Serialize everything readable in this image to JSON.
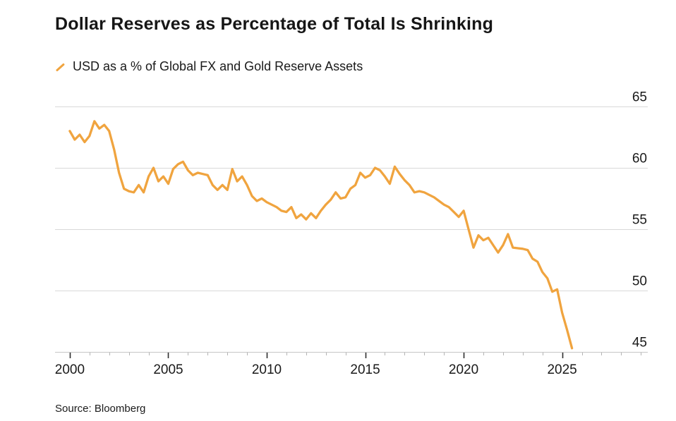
{
  "figure": {
    "title": "Dollar Reserves as Percentage of Total Is Shrinking",
    "source": "Source: Bloomberg"
  },
  "chart_data": {
    "type": "line",
    "title": "Dollar Reserves as Percentage of Total Is Shrinking",
    "source": "Source: Bloomberg",
    "legend_position": "top-left",
    "grid": "horizontal",
    "series": [
      {
        "name": "USD as a % of Global FX and Gold Reserve Assets",
        "color": "#F0A43F",
        "x_start": 2000.0,
        "x_step": 0.25,
        "x_unit": "quarter",
        "values": [
          63.0,
          62.3,
          62.7,
          62.1,
          62.6,
          63.8,
          63.2,
          63.5,
          63.0,
          61.5,
          59.6,
          58.3,
          58.1,
          58.0,
          58.6,
          58.0,
          59.3,
          60.0,
          58.9,
          59.3,
          58.7,
          59.9,
          60.3,
          60.5,
          59.8,
          59.4,
          59.6,
          59.5,
          59.4,
          58.6,
          58.2,
          58.6,
          58.2,
          59.9,
          58.9,
          59.3,
          58.6,
          57.7,
          57.3,
          57.5,
          57.2,
          57.0,
          56.8,
          56.5,
          56.4,
          56.8,
          55.9,
          56.2,
          55.8,
          56.3,
          55.9,
          56.5,
          57.0,
          57.4,
          58.0,
          57.5,
          57.6,
          58.3,
          58.6,
          59.6,
          59.2,
          59.4,
          60.0,
          59.8,
          59.3,
          58.7,
          60.1,
          59.5,
          59.0,
          58.6,
          58.0,
          58.1,
          58.0,
          57.8,
          57.6,
          57.3,
          57.0,
          56.8,
          56.4,
          56.0,
          56.5,
          55.0,
          53.5,
          54.5,
          54.1,
          54.3,
          53.7,
          53.1,
          53.7,
          54.6,
          53.5,
          53.45,
          53.4,
          53.3,
          52.6,
          52.35,
          51.5,
          51.0,
          49.9,
          50.1,
          48.2,
          46.8,
          45.3
        ]
      }
    ],
    "x_axis": {
      "min": 1999.25,
      "max": 2029.35,
      "minor_tick_years": [
        2000,
        2001,
        2002,
        2003,
        2004,
        2005,
        2006,
        2007,
        2008,
        2009,
        2010,
        2011,
        2012,
        2013,
        2014,
        2015,
        2016,
        2017,
        2018,
        2019,
        2020,
        2021,
        2022,
        2023,
        2024,
        2025,
        2026,
        2027,
        2028,
        2029
      ],
      "major_tick_years": [
        2000,
        2005,
        2010,
        2015,
        2020,
        2025
      ],
      "tick_labels": [
        "2000",
        "2005",
        "2010",
        "2015",
        "2020",
        "2025"
      ]
    },
    "y_axis": {
      "min": 45,
      "max": 65,
      "gridlines": [
        65,
        60,
        55,
        50,
        45
      ],
      "tick_labels": [
        "65",
        "60",
        "55",
        "50",
        "45"
      ],
      "side": "right"
    },
    "colors": {
      "line": "#F0A43F",
      "gridline": "#d9d9d9",
      "axis_line": "#c6c6c6",
      "major_tick": "#2e2e2e",
      "minor_tick": "#b3b3b3",
      "text": "#1a1a1a"
    }
  }
}
